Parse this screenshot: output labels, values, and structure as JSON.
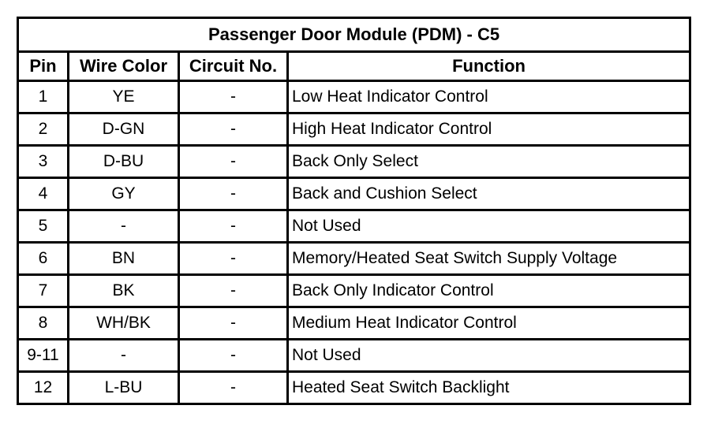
{
  "table": {
    "title": "Passenger Door Module (PDM) - C5",
    "columns": {
      "pin": "Pin",
      "wire_color": "Wire Color",
      "circuit_no": "Circuit No.",
      "function": "Function"
    },
    "rows": [
      {
        "pin": "1",
        "wire_color": "YE",
        "circuit_no": "-",
        "function": "Low Heat Indicator Control"
      },
      {
        "pin": "2",
        "wire_color": "D-GN",
        "circuit_no": "-",
        "function": "High Heat Indicator Control"
      },
      {
        "pin": "3",
        "wire_color": "D-BU",
        "circuit_no": "-",
        "function": "Back Only Select"
      },
      {
        "pin": "4",
        "wire_color": "GY",
        "circuit_no": "-",
        "function": "Back and Cushion Select"
      },
      {
        "pin": "5",
        "wire_color": "-",
        "circuit_no": "-",
        "function": "Not Used"
      },
      {
        "pin": "6",
        "wire_color": "BN",
        "circuit_no": "-",
        "function": "Memory/Heated Seat Switch Supply Voltage"
      },
      {
        "pin": "7",
        "wire_color": "BK",
        "circuit_no": "-",
        "function": "Back Only Indicator Control"
      },
      {
        "pin": "8",
        "wire_color": "WH/BK",
        "circuit_no": "-",
        "function": "Medium Heat Indicator Control"
      },
      {
        "pin": "9-11",
        "wire_color": "-",
        "circuit_no": "-",
        "function": "Not Used"
      },
      {
        "pin": "12",
        "wire_color": "L-BU",
        "circuit_no": "-",
        "function": "Heated Seat Switch Backlight"
      }
    ]
  }
}
